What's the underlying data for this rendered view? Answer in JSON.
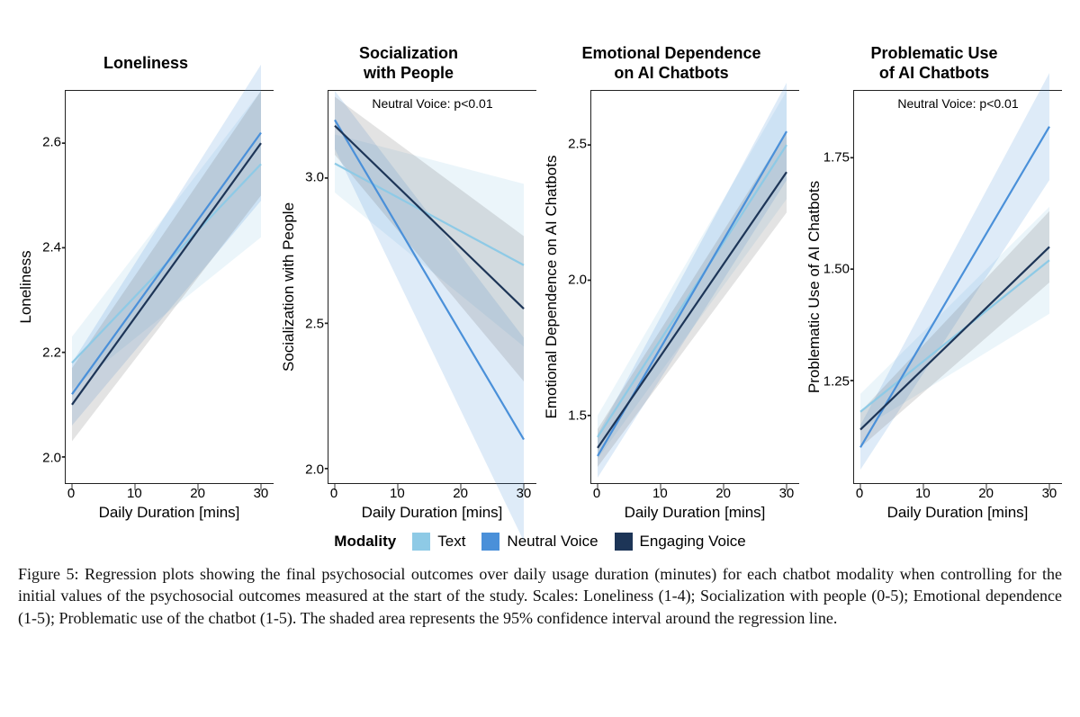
{
  "colors": {
    "text": "#8ecae6",
    "neutral": "#4a90d9",
    "engaging": "#1d3557",
    "ci_text": "#8ecae6",
    "ci_neutral": "#4a90d9",
    "ci_engaging": "#666666",
    "ci_opacity": 0.18,
    "axis": "#222222",
    "line_width": 2.2
  },
  "xaxis": {
    "label": "Daily Duration [mins]",
    "ticks": [
      0,
      10,
      20,
      30
    ],
    "xlim": [
      -1,
      32
    ]
  },
  "legend": {
    "title": "Modality",
    "items": [
      {
        "label": "Text",
        "color_key": "text"
      },
      {
        "label": "Neutral Voice",
        "color_key": "neutral"
      },
      {
        "label": "Engaging Voice",
        "color_key": "engaging"
      }
    ]
  },
  "panels": [
    {
      "id": "loneliness",
      "title": "Loneliness",
      "ylabel": "Loneliness",
      "ylim": [
        1.95,
        2.7
      ],
      "yticks": [
        2.0,
        2.2,
        2.4,
        2.6
      ],
      "annotation": "",
      "series": [
        {
          "key": "text",
          "y0": 2.18,
          "y1": 2.56,
          "ci0": 0.05,
          "ci1": 0.14
        },
        {
          "key": "neutral",
          "y0": 2.12,
          "y1": 2.62,
          "ci0": 0.06,
          "ci1": 0.13
        },
        {
          "key": "engaging",
          "y0": 2.1,
          "y1": 2.6,
          "ci0": 0.07,
          "ci1": 0.1
        }
      ]
    },
    {
      "id": "socialization",
      "title": "Socialization\nwith People",
      "ylabel": "Socialization with People",
      "ylim": [
        1.95,
        3.3
      ],
      "yticks": [
        2.0,
        2.5,
        3.0
      ],
      "annotation": "Neutral Voice: p<0.01",
      "series": [
        {
          "key": "text",
          "y0": 3.05,
          "y1": 2.7,
          "ci0": 0.1,
          "ci1": 0.28
        },
        {
          "key": "neutral",
          "y0": 3.2,
          "y1": 2.1,
          "ci0": 0.1,
          "ci1": 0.35
        },
        {
          "key": "engaging",
          "y0": 3.18,
          "y1": 2.55,
          "ci0": 0.1,
          "ci1": 0.25
        }
      ]
    },
    {
      "id": "emodep",
      "title": "Emotional Dependence\non AI Chatbots",
      "ylabel": "Emotional Dependence on AI Chatbots",
      "ylim": [
        1.25,
        2.7
      ],
      "yticks": [
        1.5,
        2.0,
        2.5
      ],
      "annotation": "",
      "series": [
        {
          "key": "text",
          "y0": 1.42,
          "y1": 2.5,
          "ci0": 0.08,
          "ci1": 0.2
        },
        {
          "key": "neutral",
          "y0": 1.35,
          "y1": 2.55,
          "ci0": 0.08,
          "ci1": 0.18
        },
        {
          "key": "engaging",
          "y0": 1.38,
          "y1": 2.4,
          "ci0": 0.07,
          "ci1": 0.15
        }
      ]
    },
    {
      "id": "problematic",
      "title": "Problematic Use\nof AI Chatbots",
      "ylabel": "Problematic Use of AI Chatbots",
      "ylim": [
        1.02,
        1.9
      ],
      "yticks": [
        1.25,
        1.5,
        1.75
      ],
      "annotation": "Neutral Voice: p<0.01",
      "series": [
        {
          "key": "text",
          "y0": 1.18,
          "y1": 1.52,
          "ci0": 0.04,
          "ci1": 0.12
        },
        {
          "key": "neutral",
          "y0": 1.1,
          "y1": 1.82,
          "ci0": 0.05,
          "ci1": 0.12
        },
        {
          "key": "engaging",
          "y0": 1.14,
          "y1": 1.55,
          "ci0": 0.04,
          "ci1": 0.08
        }
      ]
    }
  ],
  "caption": "Figure 5: Regression plots showing the final psychosocial outcomes over daily usage duration (minutes) for each chatbot modality when controlling for the initial values of the psychosocial outcomes measured at the start of the study. Scales: Loneliness (1-4); Socialization with people (0-5); Emotional dependence (1-5); Problematic use of the chatbot (1-5). The shaded area represents the 95% confidence interval around the regression line."
}
